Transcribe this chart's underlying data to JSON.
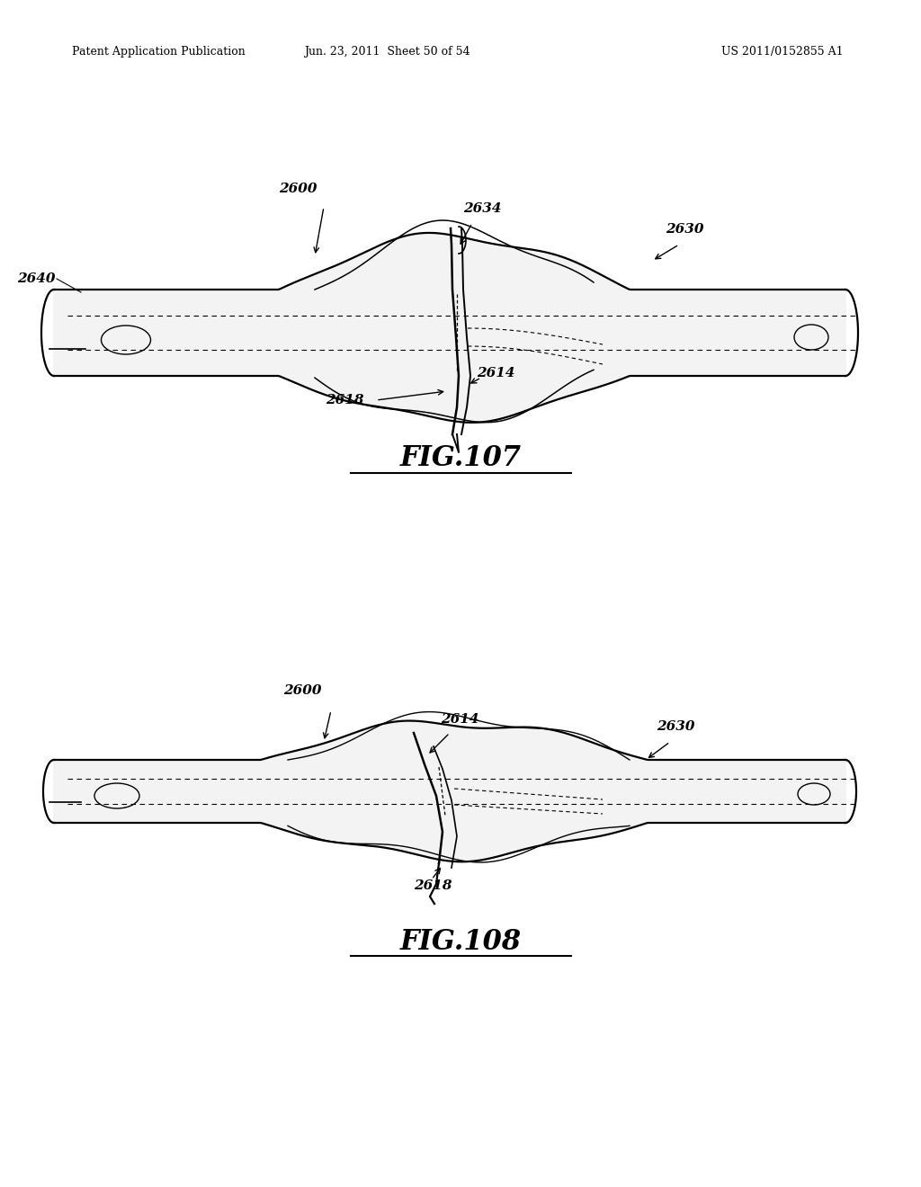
{
  "bg_color": "#ffffff",
  "header_left": "Patent Application Publication",
  "header_mid": "Jun. 23, 2011  Sheet 50 of 54",
  "header_right": "US 2011/0152855 A1",
  "fig107_label": "FIG.107",
  "fig108_label": "FIG.108",
  "page_width": 10.24,
  "page_height": 13.2,
  "dpi": 100
}
